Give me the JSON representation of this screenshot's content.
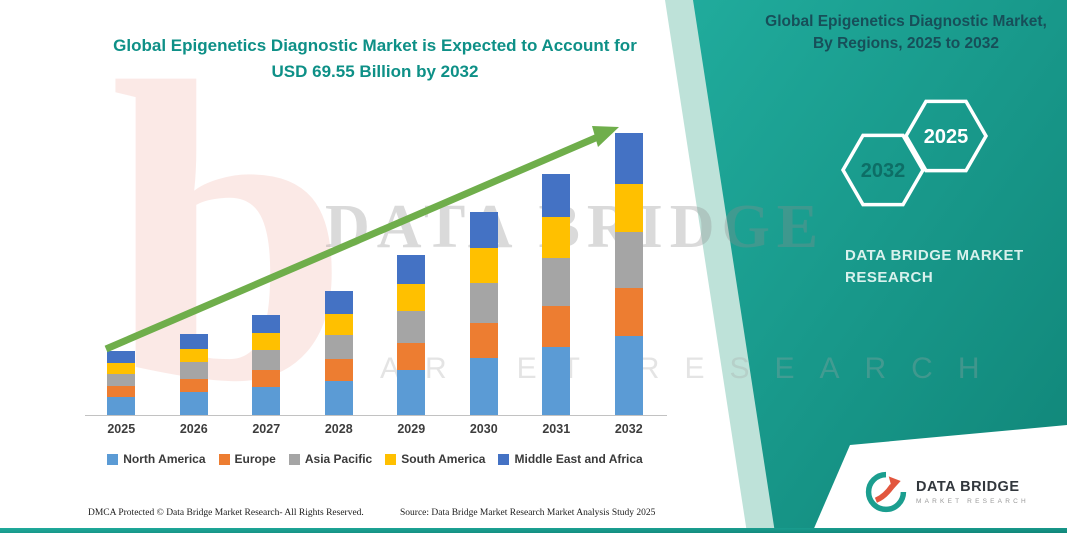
{
  "title": {
    "line1": "Global Epigenetics Diagnostic Market is Expected to Account for",
    "line2": "USD 69.55 Billion by 2032"
  },
  "side_panel": {
    "heading": "Global Epigenetics Diagnostic Market, By Regions, 2025 to 2032",
    "hexagons": [
      {
        "label": "2032"
      },
      {
        "label": "2025"
      }
    ],
    "brand_line1": "DATA BRIDGE MARKET",
    "brand_line2": "RESEARCH"
  },
  "watermark": {
    "glyph": "b",
    "line1": "DATA BRIDGE",
    "line2": "MARKET RESEARCH"
  },
  "logo": {
    "name": "DATA BRIDGE",
    "subname": "MARKET RESEARCH"
  },
  "footer": {
    "left": "DMCA Protected © Data Bridge Market Research-  All Rights Reserved.",
    "source": "Source: Data Bridge Market Research  Market Analysis Study 2025"
  },
  "colors": {
    "teal_dark": "#108578",
    "teal_light": "#20ab9c",
    "title_teal": "#0e9087",
    "arrow_green": "#6fae4b",
    "north_america": "#5b9bd5",
    "europe": "#ed7d31",
    "asia_pacific": "#a5a5a5",
    "south_america": "#ffc000",
    "middle_east_africa": "#4472c4"
  },
  "chart_data": {
    "type": "bar",
    "stacked": true,
    "title": "Global Epigenetics Diagnostic Market is Expected to Account for USD 69.55 Billion by 2032",
    "unit": "USD Billion",
    "categories": [
      "2025",
      "2026",
      "2027",
      "2028",
      "2029",
      "2030",
      "2031",
      "2032"
    ],
    "series": [
      {
        "name": "North America",
        "color": "#5b9bd5",
        "values": [
          4.4,
          5.6,
          6.9,
          8.5,
          11.1,
          14.1,
          16.7,
          19.5
        ]
      },
      {
        "name": "Europe",
        "color": "#ed7d31",
        "values": [
          2.7,
          3.4,
          4.2,
          5.2,
          6.7,
          8.5,
          10.1,
          11.8
        ]
      },
      {
        "name": "Asia Pacific",
        "color": "#a5a5a5",
        "values": [
          3.1,
          4.0,
          5.0,
          6.1,
          7.9,
          10.0,
          11.9,
          13.9
        ]
      },
      {
        "name": "South America",
        "color": "#ffc000",
        "values": [
          2.7,
          3.4,
          4.2,
          5.2,
          6.7,
          8.5,
          10.1,
          11.8
        ]
      },
      {
        "name": "Middle East and Africa",
        "color": "#4472c4",
        "values": [
          2.8,
          3.6,
          4.5,
          5.5,
          7.1,
          9.0,
          10.7,
          12.55
        ]
      }
    ],
    "totals": [
      15.7,
      20.0,
      24.8,
      30.5,
      39.5,
      50.1,
      59.5,
      69.55
    ],
    "ylim": [
      0,
      69.55
    ],
    "xlabel": "",
    "ylabel": "",
    "grid": false,
    "legend_position": "bottom",
    "annotations": [
      "upward green trend arrow across bars"
    ]
  }
}
